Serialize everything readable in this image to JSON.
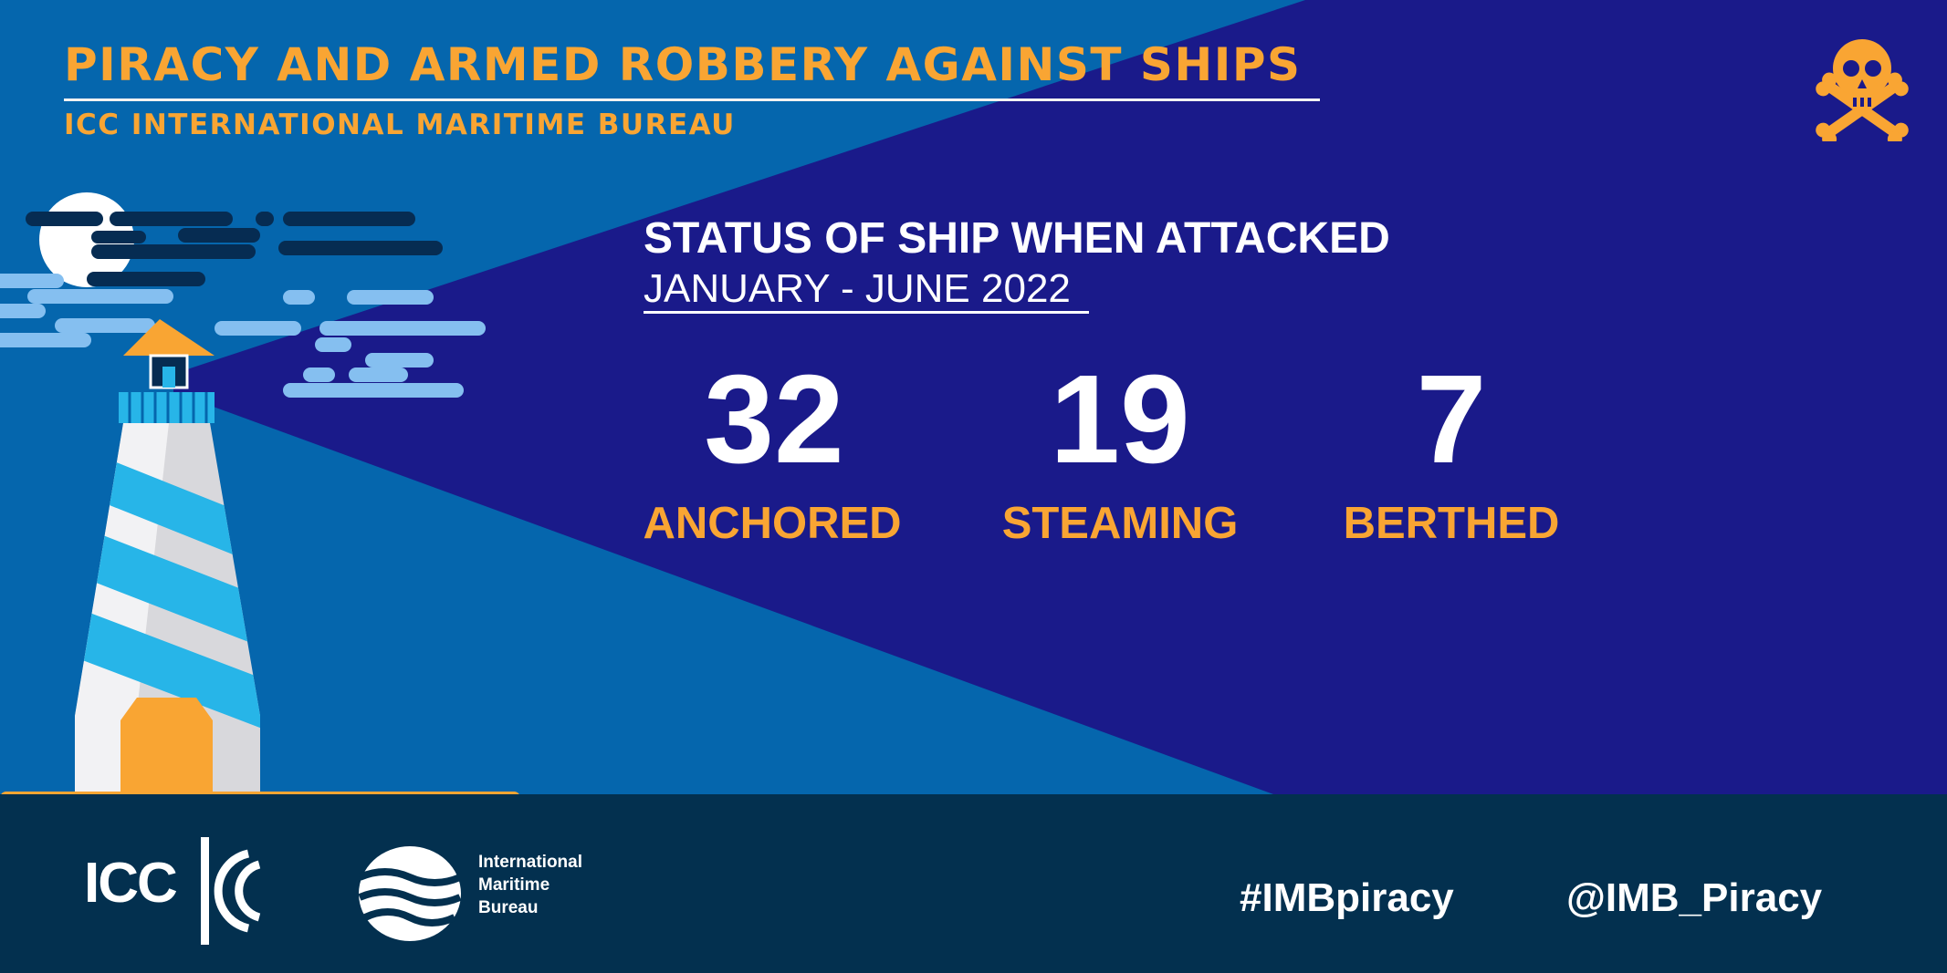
{
  "colors": {
    "orange": "#f9a533",
    "light_blue": "#0566ad",
    "dark_blue": "#1a1a8a",
    "navy_footer": "#03304f",
    "white": "#ffffff"
  },
  "header": {
    "title": "PIRACY AND ARMED ROBBERY AGAINST SHIPS",
    "subtitle": "ICC INTERNATIONAL MARITIME BUREAU",
    "icon": "skull-crossbones-icon"
  },
  "status": {
    "title": "STATUS OF SHIP WHEN ATTACKED",
    "period": "JANUARY - JUNE 2022",
    "stats": [
      {
        "value": "32",
        "label": "ANCHORED"
      },
      {
        "value": "19",
        "label": "STEAMING"
      },
      {
        "value": "7",
        "label": "BERTHED"
      }
    ]
  },
  "illustration": {
    "icon": "lighthouse-icon"
  },
  "footer": {
    "icc_logo": "ICC",
    "imb_logo_lines": [
      "International",
      "Maritime",
      "Bureau"
    ],
    "hashtag": "#IMBpiracy",
    "handle": "@IMB_Piracy"
  }
}
